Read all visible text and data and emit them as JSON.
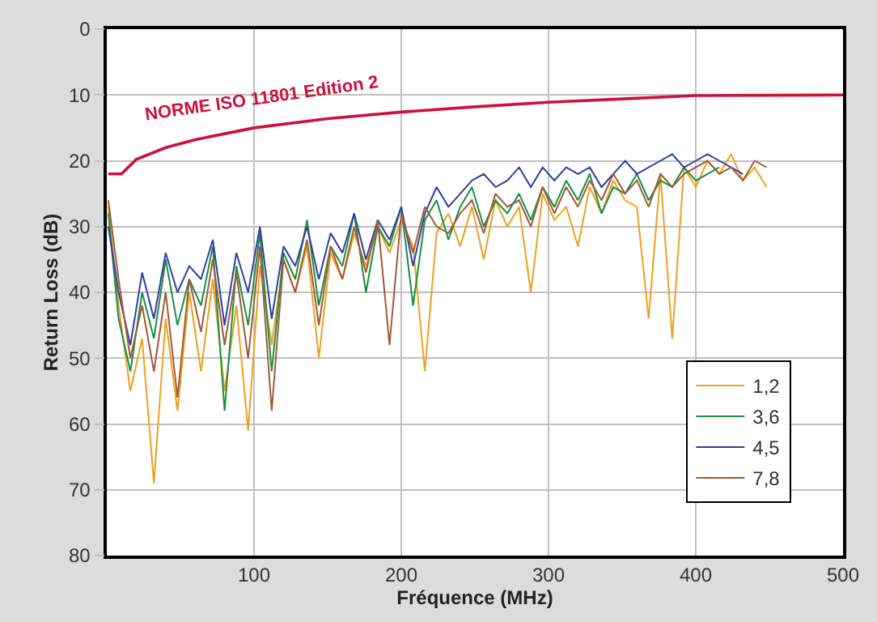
{
  "chart_data": {
    "type": "line",
    "xlabel": "Fréquence (MHz)",
    "ylabel": "Return Loss (dB)",
    "xlim": [
      0,
      500
    ],
    "xticks": [
      100,
      200,
      300,
      400,
      500
    ],
    "ylim": [
      80,
      0
    ],
    "yticks": [
      0,
      10,
      20,
      30,
      40,
      50,
      60,
      70,
      80
    ],
    "grid": true,
    "legend": "bottom right",
    "marker": "none",
    "line_style": "solid",
    "x": [
      1,
      8,
      16,
      24,
      32,
      40,
      48,
      56,
      64,
      72,
      80,
      88,
      96,
      104,
      112,
      120,
      128,
      136,
      144,
      152,
      160,
      168,
      176,
      184,
      192,
      200,
      208,
      216,
      224,
      232,
      240,
      248,
      256,
      264,
      272,
      280,
      288,
      296,
      304,
      312,
      320,
      328,
      336,
      344,
      352,
      360,
      368,
      376,
      384,
      392,
      400,
      408,
      416,
      424,
      432,
      440,
      448
    ],
    "series": [
      {
        "name": "1,2",
        "color": "#f0a020",
        "values": [
          27,
          42,
          55,
          47,
          69,
          44,
          58,
          40,
          52,
          38,
          55,
          42,
          61,
          36,
          48,
          35,
          40,
          33,
          50,
          34,
          38,
          31,
          36,
          30,
          34,
          29,
          33,
          52,
          31,
          28,
          33,
          27,
          35,
          26,
          30,
          27,
          40,
          25,
          29,
          27,
          33,
          24,
          28,
          23,
          26,
          27,
          44,
          22,
          47,
          21,
          24,
          20,
          22,
          19,
          23,
          21,
          24
        ]
      },
      {
        "name": "3,6",
        "color": "#1a9040",
        "values": [
          28,
          44,
          52,
          40,
          47,
          35,
          45,
          38,
          42,
          33,
          58,
          36,
          45,
          31,
          52,
          34,
          38,
          29,
          42,
          33,
          36,
          28,
          40,
          30,
          33,
          27,
          42,
          29,
          26,
          32,
          27,
          24,
          30,
          26,
          28,
          25,
          29,
          24,
          27,
          23,
          26,
          22,
          28,
          24,
          25,
          22,
          26,
          23,
          24,
          21,
          23,
          22,
          21,
          null,
          null,
          null,
          null
        ]
      },
      {
        "name": "4,5",
        "color": "#3040a0",
        "values": [
          30,
          40,
          48,
          37,
          44,
          34,
          40,
          36,
          38,
          32,
          45,
          34,
          40,
          30,
          44,
          33,
          36,
          30,
          38,
          31,
          34,
          28,
          35,
          29,
          32,
          27,
          36,
          28,
          24,
          27,
          25,
          23,
          22,
          24,
          23,
          21,
          24,
          21,
          23,
          21,
          22,
          21,
          24,
          22,
          20,
          22,
          21,
          20,
          19,
          21,
          20,
          19,
          20,
          21,
          22,
          null,
          null
        ]
      },
      {
        "name": "7,8",
        "color": "#a05a3a",
        "values": [
          26,
          38,
          50,
          42,
          52,
          40,
          56,
          38,
          46,
          35,
          48,
          37,
          50,
          33,
          58,
          35,
          40,
          32,
          45,
          33,
          38,
          30,
          37,
          29,
          48,
          28,
          34,
          27,
          30,
          31,
          28,
          26,
          31,
          25,
          27,
          26,
          30,
          24,
          28,
          24,
          27,
          23,
          26,
          22,
          25,
          23,
          27,
          22,
          24,
          22,
          21,
          20,
          22,
          21,
          23,
          20,
          21
        ]
      },
      {
        "color": "#d0103a",
        "x": [
          1,
          10,
          20,
          40,
          60,
          100,
          150,
          200,
          250,
          300,
          350,
          400,
          500
        ],
        "values": [
          22,
          22,
          19.8,
          18,
          16.8,
          15,
          13.6,
          12.6,
          11.8,
          11.1,
          10.6,
          10.1,
          10
        ]
      }
    ],
    "annotations": [
      {
        "text": "NORME ISO 11801 Edition 2",
        "x": 106,
        "y": 15
      }
    ]
  }
}
